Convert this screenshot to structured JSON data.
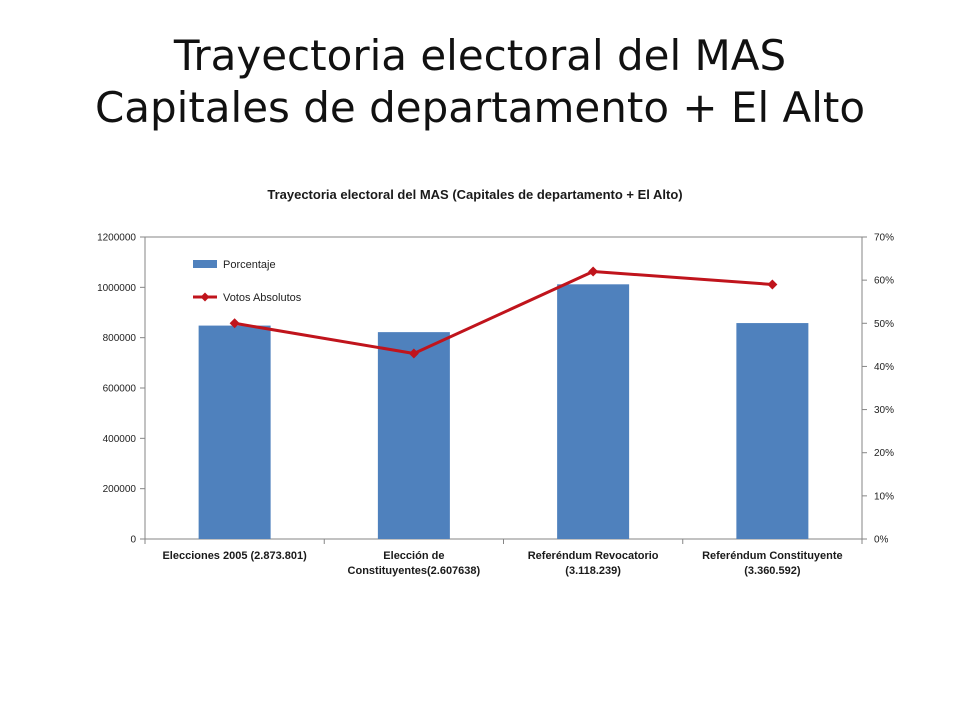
{
  "slide": {
    "title_line1": "Trayectoria electoral del MAS",
    "title_line2": "Capitales de departamento + El Alto"
  },
  "chart_data": {
    "type": "bar",
    "title": "Trayectoria electoral del MAS (Capitales de departamento + El Alto)",
    "categories": [
      [
        "Elecciones 2005 (2.873.801)"
      ],
      [
        "Elección de",
        "Constituyentes(2.607638)"
      ],
      [
        "Referéndum Revocatorio",
        "(3.118.239)"
      ],
      [
        "Referéndum Constituyente",
        "(3.360.592)"
      ]
    ],
    "series": [
      {
        "name": "Porcentaje",
        "type": "bar",
        "axis": "left",
        "values": [
          848000,
          822000,
          1012000,
          858000
        ],
        "color": "#4f81bd"
      },
      {
        "name": "Votos Absolutos",
        "type": "line",
        "axis": "right",
        "values": [
          0.5,
          0.43,
          0.62,
          0.59
        ],
        "color": "#c0141c"
      }
    ],
    "y_left": {
      "ylim": [
        0,
        1200000
      ],
      "ticks": [
        "0",
        "200000",
        "400000",
        "600000",
        "800000",
        "1000000",
        "1200000"
      ]
    },
    "y_right": {
      "ylim": [
        0,
        0.7
      ],
      "ticks": [
        "0%",
        "10%",
        "20%",
        "30%",
        "40%",
        "50%",
        "60%",
        "70%"
      ]
    },
    "grid": false,
    "legend_position": "top-left"
  }
}
